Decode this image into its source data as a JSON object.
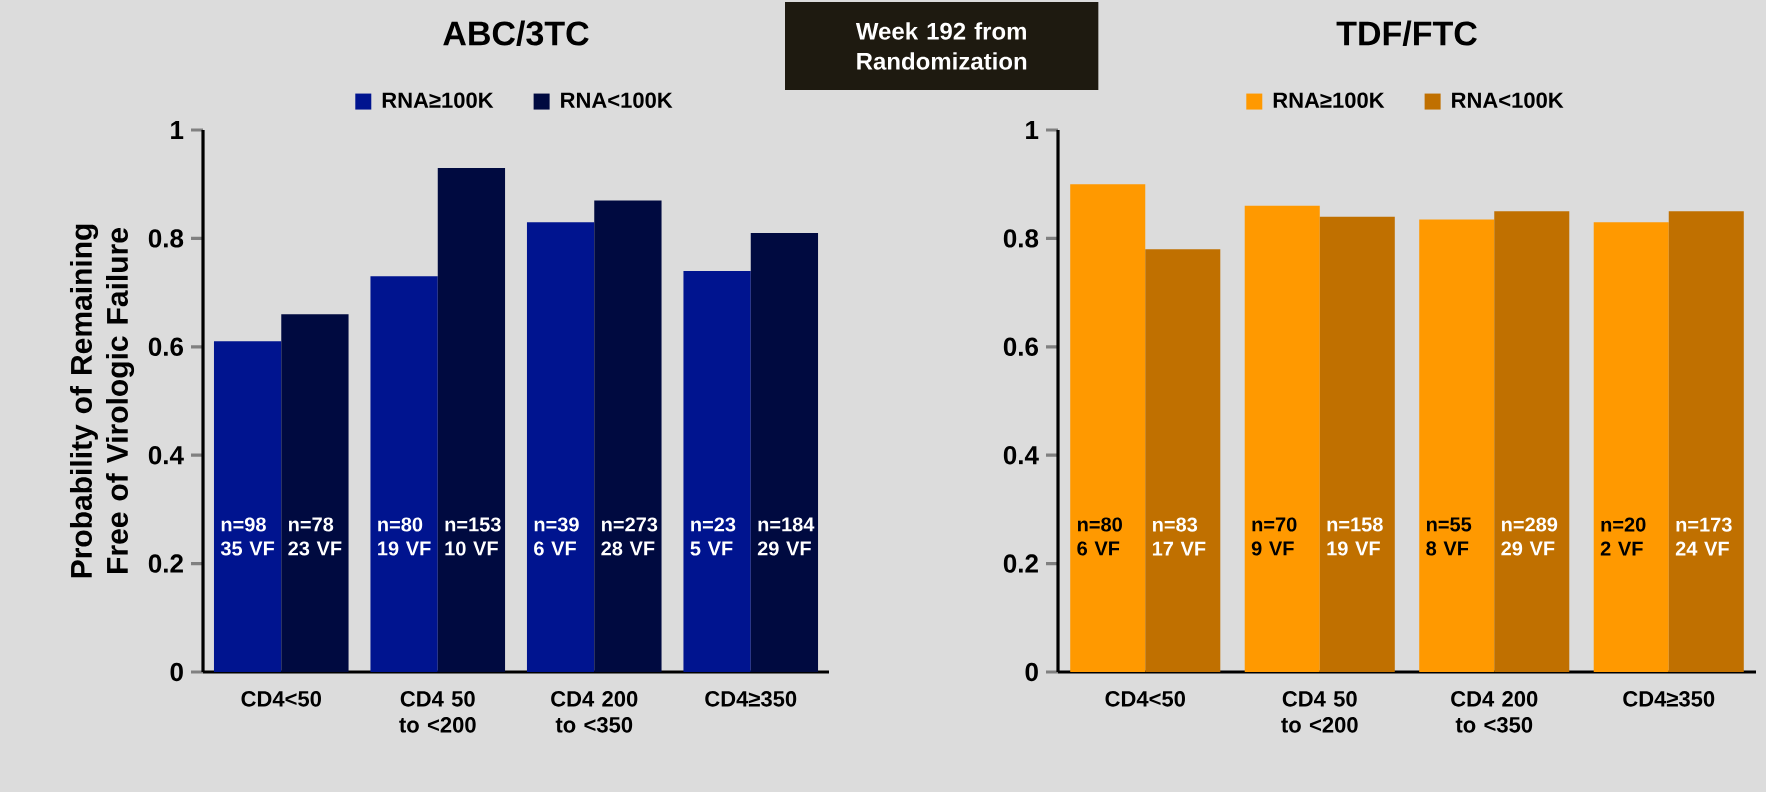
{
  "chart_data": [
    {
      "type": "bar",
      "title": "ABC/3TC",
      "ylabel": "Probability of Remaining Free of Virologic Failure",
      "categories": [
        "CD4<50",
        "CD4 50 to <200",
        "CD4 200 to <350",
        "CD4≥350"
      ],
      "series": [
        {
          "name": "RNA≥100K",
          "color": "#00148f",
          "values": [
            0.61,
            0.73,
            0.83,
            0.74
          ],
          "value_labels": [
            "n=98 35 VF",
            "n=80 19 VF",
            "n=39 6 VF",
            "n=23 5 VF"
          ]
        },
        {
          "name": "RNA<100K",
          "color": "#000a40",
          "values": [
            0.66,
            0.93,
            0.87,
            0.81
          ],
          "value_labels": [
            "n=78 23 VF",
            "n=153 10 VF",
            "n=273 28 VF",
            "n=184 29 VF"
          ]
        }
      ],
      "ylim": [
        0,
        1
      ],
      "yticks": [
        0,
        0.2,
        0.4,
        0.6,
        0.8,
        1
      ],
      "legend": "top",
      "annotations": [
        "Week 192 from Randomization"
      ]
    },
    {
      "type": "bar",
      "title": "TDF/FTC",
      "categories": [
        "CD4<50",
        "CD4 50 to <200",
        "CD4 200 to <350",
        "CD4≥350"
      ],
      "series": [
        {
          "name": "RNA≥100K",
          "color": "#ff9900",
          "values": [
            0.9,
            0.86,
            0.835,
            0.83
          ],
          "value_labels": [
            "n=80 6 VF",
            "n=70 9 VF",
            "n=55 8 VF",
            "n=20 2 VF"
          ]
        },
        {
          "name": "RNA<100K",
          "color": "#c07000",
          "values": [
            0.78,
            0.84,
            0.85,
            0.85
          ],
          "value_labels": [
            "n=83 17 VF",
            "n=158 19 VF",
            "n=289 29 VF",
            "n=173 24 VF"
          ]
        }
      ],
      "ylim": [
        0,
        1
      ],
      "yticks": [
        0,
        0.2,
        0.4,
        0.6,
        0.8,
        1
      ],
      "legend": "top"
    }
  ]
}
